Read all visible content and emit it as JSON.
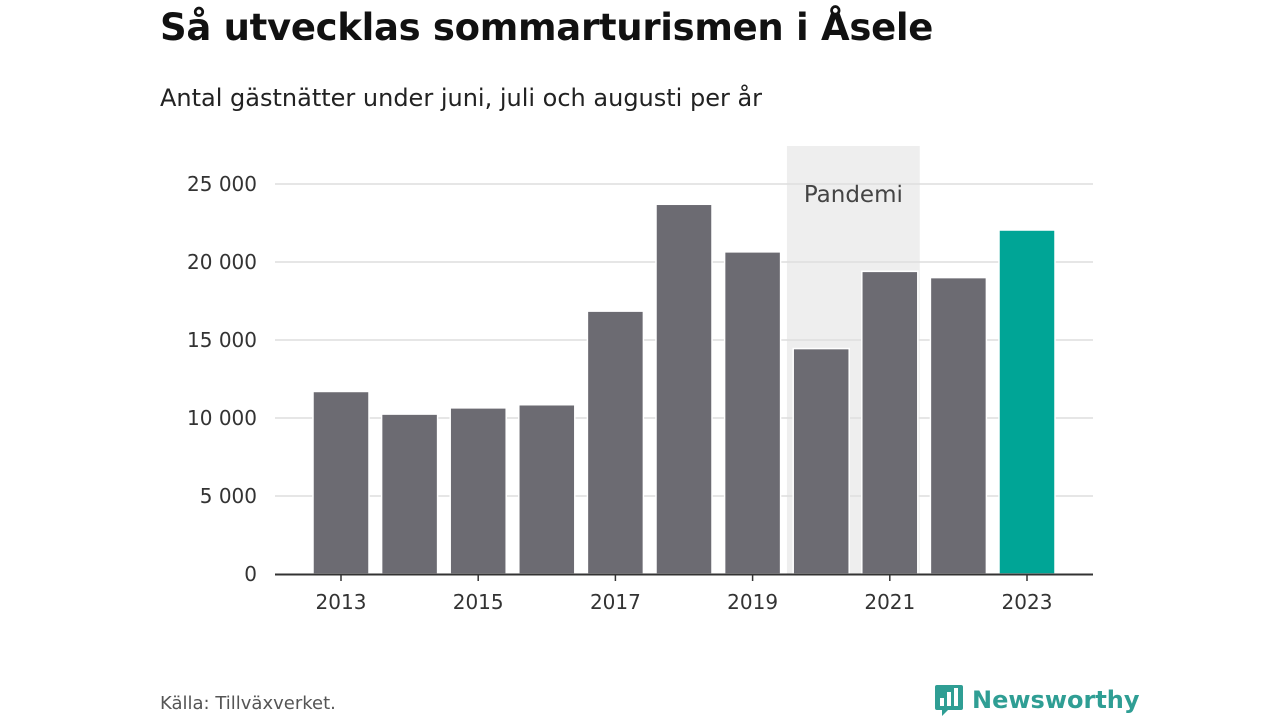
{
  "header": {
    "title": "Så utvecklas sommarturismen i Åsele",
    "subtitle": "Antal gästnätter under juni, juli och augusti per år"
  },
  "footer": {
    "source": "Källa: Tillväxverket.",
    "brand_name": "Newsworthy",
    "brand_icon": "bar-chart-bubble-icon"
  },
  "colors": {
    "bar_default": "#6c6b72",
    "bar_highlight": "#00a596",
    "pandemic_band": "#eeeeee",
    "gridline": "#dddddd",
    "axis": "#333333",
    "brand": "#2f9e94"
  },
  "chart_data": {
    "type": "bar",
    "categories": [
      "2013",
      "2014",
      "2015",
      "2016",
      "2017",
      "2018",
      "2019",
      "2020",
      "2021",
      "2022",
      "2023"
    ],
    "x_tick_labels": [
      "2013",
      "2015",
      "2017",
      "2019",
      "2021",
      "2023"
    ],
    "values": [
      11700,
      10250,
      10650,
      10850,
      16850,
      23700,
      20650,
      14450,
      19400,
      19000,
      22050
    ],
    "highlight_category": "2023",
    "ylim": [
      0,
      25000
    ],
    "y_ticks": [
      0,
      5000,
      10000,
      15000,
      20000,
      25000
    ],
    "y_tick_labels": [
      "0",
      "5 000",
      "10 000",
      "15 000",
      "20 000",
      "25 000"
    ],
    "annotations": [
      {
        "text": "Pandemi",
        "x_start": "2020",
        "x_end": "2021"
      }
    ],
    "grid": true,
    "legend": "none"
  }
}
